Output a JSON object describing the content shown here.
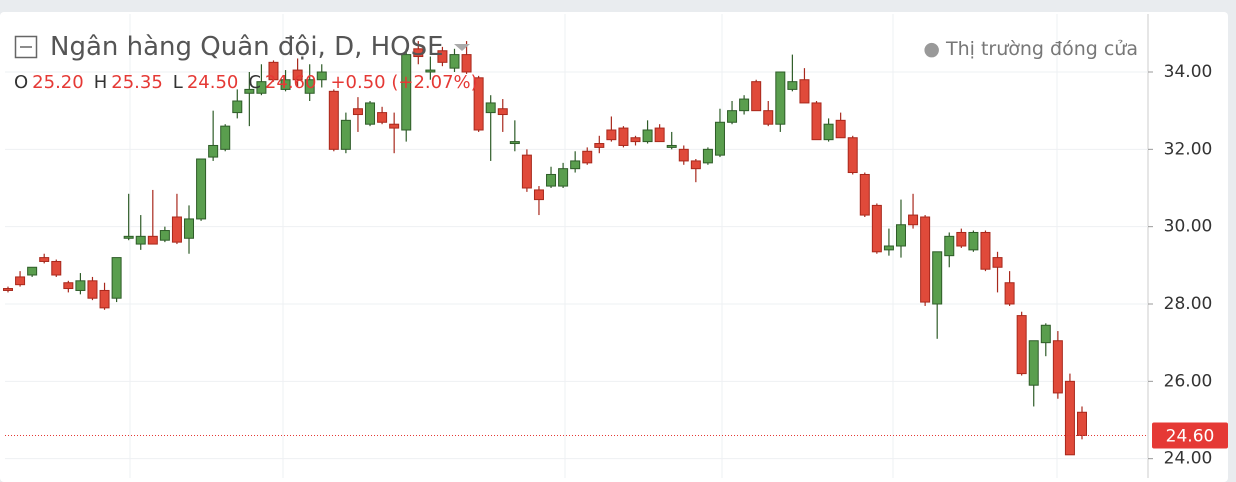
{
  "chart_data": {
    "type": "candlestick",
    "title": "Ngân hàng Quân đội, D, HOSE",
    "status": "Thị trường đóng cửa",
    "ohlc_legend": [
      {
        "key": "O",
        "text": "25.20"
      },
      {
        "key": "H",
        "text": "25.35"
      },
      {
        "key": "L",
        "text": "24.50"
      },
      {
        "key": "C",
        "text": "24.60"
      },
      {
        "key": "+0.50 (+2.07%)",
        "text": null
      }
    ],
    "up_color": "#5a9e4e",
    "up_border": "#2e5c28",
    "down_color": "#e04a3a",
    "down_border": "#a8281c",
    "ylim": [
      23.5,
      35.5
    ],
    "yticks": [
      {
        "value": 24,
        "label": "24.00"
      },
      {
        "value": 26,
        "label": "26.00"
      },
      {
        "value": 28,
        "label": "28.00"
      },
      {
        "value": 30,
        "label": "30.00"
      },
      {
        "value": 32,
        "label": "32.00"
      },
      {
        "value": 34,
        "label": "34.00"
      }
    ],
    "grid": true,
    "last_price": {
      "value": 24.6,
      "label": "24.60",
      "color": "#e53935"
    },
    "categories": [
      null,
      null,
      null,
      null,
      null,
      null,
      null,
      null,
      null,
      null,
      null,
      null,
      null,
      null,
      null,
      null,
      null,
      null,
      null,
      null,
      null,
      null,
      null,
      null,
      null,
      null,
      null,
      null,
      null,
      null,
      null,
      null,
      null,
      null,
      null,
      null,
      null,
      null,
      null,
      null,
      null,
      null,
      null,
      null,
      null,
      null,
      null,
      null,
      null,
      null,
      null,
      null,
      null,
      null,
      null,
      null,
      null,
      null,
      null,
      null,
      null,
      null,
      null,
      null,
      null,
      null,
      null,
      null,
      null,
      null,
      null,
      null,
      null,
      null,
      null,
      null,
      null,
      null,
      null,
      null,
      null,
      null,
      null,
      null,
      null,
      null,
      null,
      null,
      null,
      null
    ],
    "open": [
      28.4,
      28.7,
      28.75,
      29.2,
      29.1,
      28.55,
      28.35,
      28.6,
      28.35,
      28.15,
      29.7,
      29.55,
      29.75,
      29.65,
      30.25,
      29.7,
      30.2,
      31.8,
      32.0,
      32.95,
      33.45,
      33.45,
      34.25,
      33.55,
      34.05,
      33.45,
      33.8,
      33.5,
      32.0,
      33.05,
      32.65,
      32.95,
      32.65,
      32.5,
      34.6,
      34.0,
      34.55,
      34.1,
      34.45,
      33.85,
      32.95,
      33.05,
      32.15,
      31.85,
      30.95,
      31.05,
      31.05,
      31.5,
      31.95,
      32.15,
      32.5,
      32.55,
      32.3,
      32.2,
      32.55,
      32.05,
      32.0,
      31.7,
      31.65,
      31.85,
      32.7,
      33.0,
      33.75,
      33.0,
      32.65,
      33.55,
      33.8,
      33.2,
      32.25,
      32.75,
      32.3,
      31.35,
      30.55,
      29.4,
      29.5,
      30.3,
      30.25,
      28.0,
      29.25,
      29.85,
      29.4,
      29.85,
      29.2,
      28.55,
      27.7,
      25.9,
      27.0,
      27.05,
      26.0,
      25.2
    ],
    "high": [
      28.45,
      28.85,
      28.95,
      29.3,
      29.15,
      28.6,
      28.8,
      28.7,
      28.55,
      29.2,
      30.85,
      30.3,
      30.95,
      30.0,
      30.85,
      30.55,
      31.75,
      33.0,
      32.65,
      33.55,
      34.0,
      34.2,
      34.3,
      34.05,
      34.35,
      34.2,
      34.2,
      33.55,
      32.95,
      33.35,
      33.25,
      33.1,
      32.95,
      34.6,
      34.8,
      34.4,
      34.65,
      34.6,
      34.8,
      33.9,
      33.4,
      33.3,
      32.75,
      32.0,
      31.05,
      31.55,
      31.65,
      31.95,
      32.05,
      32.35,
      32.85,
      32.6,
      32.35,
      32.75,
      32.65,
      32.45,
      32.1,
      31.75,
      32.05,
      33.05,
      33.25,
      33.4,
      33.8,
      33.25,
      34.0,
      34.45,
      34.1,
      33.25,
      32.8,
      32.95,
      32.35,
      31.4,
      30.6,
      29.95,
      30.7,
      30.85,
      30.3,
      29.35,
      29.85,
      29.95,
      29.9,
      29.9,
      29.35,
      28.85,
      27.8,
      27.05,
      27.5,
      27.3,
      26.2,
      25.35
    ],
    "low": [
      28.3,
      28.45,
      28.7,
      29.05,
      28.7,
      28.3,
      28.25,
      28.1,
      27.85,
      28.05,
      29.65,
      29.4,
      29.55,
      29.6,
      29.55,
      29.3,
      30.15,
      31.7,
      31.95,
      32.8,
      32.6,
      33.4,
      33.75,
      33.5,
      33.6,
      33.25,
      33.6,
      31.95,
      31.9,
      32.45,
      32.6,
      32.65,
      31.9,
      32.2,
      34.2,
      33.8,
      34.15,
      34.0,
      33.95,
      32.45,
      31.7,
      32.45,
      31.95,
      30.9,
      30.3,
      31.0,
      31.0,
      31.4,
      31.6,
      31.9,
      32.2,
      32.05,
      32.1,
      32.15,
      32.2,
      32.0,
      31.6,
      31.15,
      31.6,
      31.8,
      32.65,
      32.9,
      33.0,
      32.6,
      32.45,
      33.5,
      33.2,
      32.25,
      32.2,
      32.3,
      31.35,
      30.25,
      29.3,
      29.25,
      29.2,
      29.95,
      27.95,
      27.1,
      28.95,
      29.45,
      29.35,
      28.85,
      28.3,
      27.95,
      26.15,
      25.35,
      26.65,
      25.55,
      24.1,
      24.5
    ],
    "close": [
      28.35,
      28.5,
      28.95,
      29.1,
      28.75,
      28.4,
      28.6,
      28.15,
      27.9,
      29.2,
      29.75,
      29.75,
      29.55,
      29.9,
      29.6,
      30.2,
      31.75,
      32.1,
      32.6,
      33.25,
      33.55,
      33.75,
      33.8,
      33.8,
      33.8,
      33.8,
      34.0,
      32.0,
      32.75,
      32.9,
      33.2,
      32.7,
      32.55,
      34.45,
      34.4,
      34.05,
      34.25,
      34.45,
      34.0,
      32.5,
      33.2,
      32.9,
      32.2,
      31.0,
      30.7,
      31.35,
      31.5,
      31.7,
      31.65,
      32.05,
      32.25,
      32.1,
      32.2,
      32.5,
      32.2,
      32.1,
      31.7,
      31.5,
      32.0,
      32.7,
      33.0,
      33.3,
      33.0,
      32.65,
      34.0,
      33.75,
      33.2,
      32.25,
      32.65,
      32.3,
      31.4,
      30.3,
      29.35,
      29.5,
      30.05,
      30.05,
      28.05,
      29.35,
      29.75,
      29.5,
      29.85,
      28.9,
      28.95,
      28.0,
      26.2,
      27.05,
      27.45,
      25.7,
      24.1,
      24.6
    ]
  }
}
